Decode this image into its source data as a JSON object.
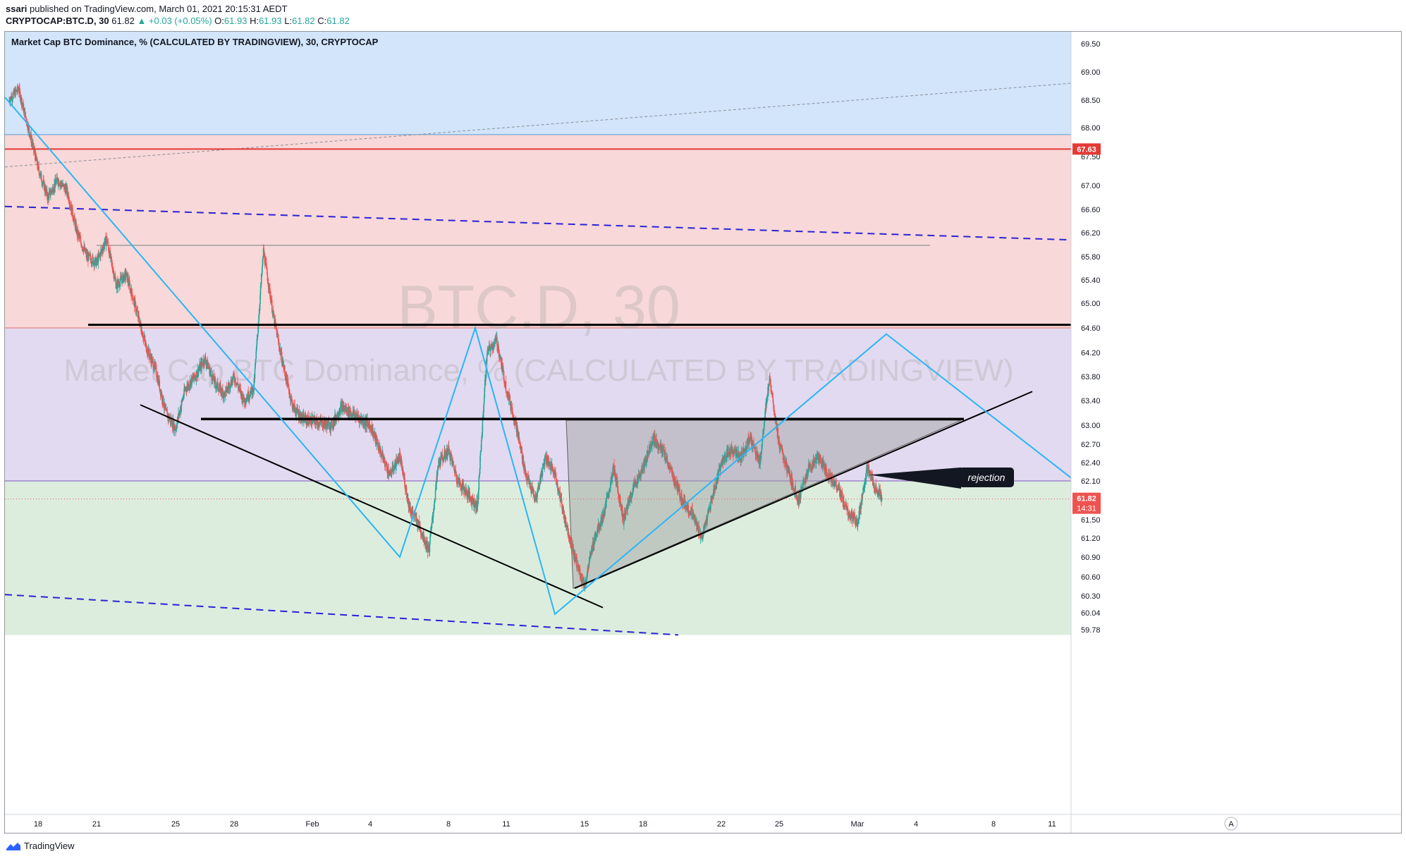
{
  "header": {
    "author": "ssari",
    "published": "published on TradingView.com, March 01, 2021 20:15:31 AEDT",
    "symbol": "CRYPTOCAP:BTC.D, 30",
    "last": "61.82",
    "change": "+0.03 (+0.05%)",
    "open_label": "O:",
    "open": "61.93",
    "high_label": "H:",
    "high": "61.93",
    "low_label": "L:",
    "low": "61.82",
    "close_label": "C:",
    "close": "61.82"
  },
  "legend": "Market Cap BTC Dominance, % (CALCULATED BY TRADINGVIEW), 30, CRYPTOCAP",
  "watermark": {
    "line1": "BTC.D, 30",
    "line2": "Market Cap BTC Dominance, % (CALCULATED BY TRADINGVIEW)"
  },
  "annotation": "rejection",
  "price_badges": {
    "level": "67.63",
    "last": "61.82",
    "countdown": "14:31"
  },
  "scale_mode": "A",
  "footer": {
    "brand": "TradingView"
  },
  "colors": {
    "zone_blue": "#d2e5fb",
    "zone_red": "#f8d8d8",
    "zone_purple": "#e2daf0",
    "zone_green": "#dcedde",
    "candle_up": "#26a69a",
    "candle_down": "#ef5350",
    "level_red": "#e53935",
    "channel_dash": "#2b22d8",
    "zigzag": "#29b6f6"
  },
  "chart_data": {
    "type": "candlestick",
    "title": "Market Cap BTC Dominance, % (CALCULATED BY TRADINGVIEW), 30, CRYPTOCAP",
    "xlabel": "",
    "ylabel": "",
    "y_ticks": [
      "69.50",
      "69.00",
      "68.50",
      "68.00",
      "67.50",
      "67.00",
      "66.60",
      "66.20",
      "65.80",
      "65.40",
      "65.00",
      "64.60",
      "64.20",
      "63.80",
      "63.40",
      "63.00",
      "62.70",
      "62.40",
      "62.10",
      "61.50",
      "61.20",
      "60.90",
      "60.60",
      "60.30",
      "60.04",
      "59.78"
    ],
    "x_ticks": [
      "18",
      "21",
      "25",
      "28",
      "Feb",
      "4",
      "8",
      "11",
      "15",
      "18",
      "22",
      "25",
      "Mar",
      "4",
      "8",
      "11"
    ],
    "ylim": [
      59.7,
      69.9
    ],
    "close_path": [
      [
        "Jan 16 12:00",
        68.5
      ],
      [
        "Jan 17 00:00",
        68.7
      ],
      [
        "Jan 17 12:00",
        68.0
      ],
      [
        "Jan 18 00:00",
        67.3
      ],
      [
        "Jan 18 12:00",
        66.8
      ],
      [
        "Jan 19 00:00",
        67.1
      ],
      [
        "Jan 19 12:00",
        66.9
      ],
      [
        "Jan 20 00:00",
        66.2
      ],
      [
        "Jan 20 12:00",
        65.8
      ],
      [
        "Jan 21 00:00",
        65.7
      ],
      [
        "Jan 21 12:00",
        66.1
      ],
      [
        "Jan 22 00:00",
        65.3
      ],
      [
        "Jan 22 12:00",
        65.5
      ],
      [
        "Jan 23 00:00",
        64.9
      ],
      [
        "Jan 23 12:00",
        64.3
      ],
      [
        "Jan 24 00:00",
        63.9
      ],
      [
        "Jan 24 12:00",
        63.2
      ],
      [
        "Jan 25 00:00",
        62.95
      ],
      [
        "Jan 25 12:00",
        63.6
      ],
      [
        "Jan 26 00:00",
        63.8
      ],
      [
        "Jan 26 12:00",
        64.1
      ],
      [
        "Jan 27 00:00",
        63.7
      ],
      [
        "Jan 27 12:00",
        63.5
      ],
      [
        "Jan 28 00:00",
        63.8
      ],
      [
        "Jan 28 12:00",
        63.4
      ],
      [
        "Jan 29 00:00",
        63.6
      ],
      [
        "Jan 29 12:00",
        65.9
      ],
      [
        "Jan 30 00:00",
        64.8
      ],
      [
        "Jan 30 12:00",
        64.0
      ],
      [
        "Jan 31 00:00",
        63.3
      ],
      [
        "Jan 31 12:00",
        63.1
      ],
      [
        "Feb 01 00:00",
        63.0
      ],
      [
        "Feb 01 12:00",
        63.3
      ],
      [
        "Feb 02 00:00",
        63.2
      ],
      [
        "Feb 02 12:00",
        63.1
      ],
      [
        "Feb 03 00:00",
        63.0
      ],
      [
        "Feb 03 12:00",
        62.6
      ],
      [
        "Feb 04 00:00",
        62.2
      ],
      [
        "Feb 04 12:00",
        62.5
      ],
      [
        "Feb 05 00:00",
        61.7
      ],
      [
        "Feb 05 12:00",
        61.4
      ],
      [
        "Feb 06 00:00",
        61.0
      ],
      [
        "Feb 06 12:00",
        62.4
      ],
      [
        "Feb 07 00:00",
        62.6
      ],
      [
        "Feb 07 12:00",
        62.1
      ],
      [
        "Feb 08 00:00",
        61.9
      ],
      [
        "Feb 08 12:00",
        61.7
      ],
      [
        "Feb 09 00:00",
        64.2
      ],
      [
        "Feb 09 12:00",
        64.4
      ],
      [
        "Feb 10 00:00",
        63.6
      ],
      [
        "Feb 10 12:00",
        63.0
      ],
      [
        "Feb 11 00:00",
        62.2
      ],
      [
        "Feb 11 12:00",
        61.8
      ],
      [
        "Feb 12 00:00",
        62.5
      ],
      [
        "Feb 12 12:00",
        62.2
      ],
      [
        "Feb 13 00:00",
        61.5
      ],
      [
        "Feb 13 12:00",
        60.9
      ],
      [
        "Feb 14 00:00",
        60.45
      ],
      [
        "Feb 14 12:00",
        61.2
      ],
      [
        "Feb 15 00:00",
        61.6
      ],
      [
        "Feb 15 12:00",
        62.3
      ],
      [
        "Feb 16 00:00",
        61.5
      ],
      [
        "Feb 16 12:00",
        62.0
      ],
      [
        "Feb 17 00:00",
        62.3
      ],
      [
        "Feb 17 12:00",
        62.8
      ],
      [
        "Feb 18 00:00",
        62.6
      ],
      [
        "Feb 18 12:00",
        62.2
      ],
      [
        "Feb 19 00:00",
        61.8
      ],
      [
        "Feb 19 12:00",
        61.6
      ],
      [
        "Feb 20 00:00",
        61.2
      ],
      [
        "Feb 20 12:00",
        61.8
      ],
      [
        "Feb 21 00:00",
        62.4
      ],
      [
        "Feb 21 12:00",
        62.6
      ],
      [
        "Feb 22 00:00",
        62.5
      ],
      [
        "Feb 22 12:00",
        62.8
      ],
      [
        "Feb 23 00:00",
        62.4
      ],
      [
        "Feb 23 12:00",
        63.8
      ],
      [
        "Feb 24 00:00",
        62.7
      ],
      [
        "Feb 24 12:00",
        62.2
      ],
      [
        "Feb 25 00:00",
        61.8
      ],
      [
        "Feb 25 12:00",
        62.3
      ],
      [
        "Feb 26 00:00",
        62.5
      ],
      [
        "Feb 26 12:00",
        62.2
      ],
      [
        "Feb 27 00:00",
        62.0
      ],
      [
        "Feb 27 12:00",
        61.6
      ],
      [
        "Feb 28 00:00",
        61.45
      ],
      [
        "Feb 28 12:00",
        62.3
      ],
      [
        "Mar 01 00:00",
        61.95
      ],
      [
        "Mar 01 06:00",
        61.82
      ]
    ],
    "horizontal_levels": [
      64.65,
      63.1,
      67.63
    ],
    "zones": [
      {
        "color": "blue",
        "from": 67.88,
        "to": 69.9
      },
      {
        "color": "red",
        "from": 64.6,
        "to": 67.88
      },
      {
        "color": "purple",
        "from": 62.1,
        "to": 64.6
      },
      {
        "color": "green",
        "from": 59.7,
        "to": 62.1
      }
    ],
    "legend": "none",
    "grid": false
  }
}
